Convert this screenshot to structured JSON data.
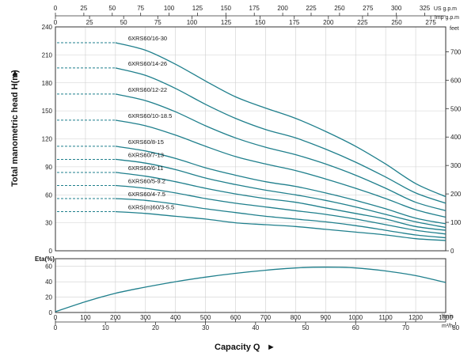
{
  "chart_data": [
    {
      "type": "line",
      "title": "",
      "ylabel": "Total manometric head H(m)",
      "ylabel_right_unit": "feet",
      "ylim": [
        0,
        240
      ],
      "xlim": [
        0,
        1300
      ],
      "x_unit": "l/min",
      "yticks": [
        0,
        30,
        60,
        90,
        120,
        150,
        180,
        210,
        240
      ],
      "yticks_feet": [
        0,
        100,
        200,
        300,
        400,
        500,
        600,
        700
      ],
      "grid": true,
      "dashed_segment_end": 200,
      "series": [
        {
          "name": "6XRS60/16-30",
          "x": [
            200,
            300,
            400,
            500,
            600,
            700,
            800,
            900,
            1000,
            1100,
            1200,
            1300
          ],
          "y": [
            223,
            215,
            200,
            182,
            165,
            153,
            142,
            128,
            112,
            93,
            72,
            58
          ]
        },
        {
          "name": "6XRS60/14-26",
          "x": [
            200,
            300,
            400,
            500,
            600,
            700,
            800,
            900,
            1000,
            1100,
            1200,
            1300
          ],
          "y": [
            196,
            188,
            174,
            157,
            142,
            130,
            121,
            109,
            95,
            79,
            62,
            51
          ]
        },
        {
          "name": "6XRS60/12-22",
          "x": [
            200,
            300,
            400,
            500,
            600,
            700,
            800,
            900,
            1000,
            1100,
            1200,
            1300
          ],
          "y": [
            168,
            161,
            149,
            134,
            121,
            111,
            103,
            93,
            81,
            67,
            52,
            43
          ]
        },
        {
          "name": "6XRS60/10-18.5",
          "x": [
            200,
            300,
            400,
            500,
            600,
            700,
            800,
            900,
            1000,
            1100,
            1200,
            1300
          ],
          "y": [
            140,
            134,
            124,
            112,
            101,
            93,
            86,
            77,
            67,
            56,
            44,
            36
          ]
        },
        {
          "name": "6XRS60/8-15",
          "x": [
            200,
            300,
            400,
            500,
            600,
            700,
            800,
            900,
            1000,
            1100,
            1200,
            1300
          ],
          "y": [
            112,
            107,
            99,
            89,
            81,
            74,
            69,
            62,
            54,
            45,
            35,
            29
          ]
        },
        {
          "name": "6XRS60/7-13",
          "x": [
            200,
            300,
            400,
            500,
            600,
            700,
            800,
            900,
            1000,
            1100,
            1200,
            1300
          ],
          "y": [
            98,
            94,
            87,
            78,
            71,
            65,
            60,
            54,
            47,
            39,
            31,
            25
          ]
        },
        {
          "name": "6XRS60/6-11",
          "x": [
            200,
            300,
            400,
            500,
            600,
            700,
            800,
            900,
            1000,
            1100,
            1200,
            1300
          ],
          "y": [
            84,
            80,
            74,
            67,
            61,
            56,
            52,
            46,
            40,
            34,
            26,
            22
          ]
        },
        {
          "name": "6XRS60/5-9.2",
          "x": [
            200,
            300,
            400,
            500,
            600,
            700,
            800,
            900,
            1000,
            1100,
            1200,
            1300
          ],
          "y": [
            70,
            67,
            62,
            56,
            51,
            47,
            43,
            39,
            34,
            28,
            22,
            18
          ]
        },
        {
          "name": "6XRS60/4-7.5",
          "x": [
            200,
            300,
            400,
            500,
            600,
            700,
            800,
            900,
            1000,
            1100,
            1200,
            1300
          ],
          "y": [
            56,
            54,
            50,
            45,
            41,
            37,
            34,
            31,
            27,
            22,
            17,
            14
          ]
        },
        {
          "name": "6XRS(m)60/3-5.5",
          "x": [
            200,
            300,
            400,
            500,
            600,
            700,
            800,
            900,
            1000,
            1100,
            1200,
            1300
          ],
          "y": [
            42,
            40,
            37,
            34,
            30,
            28,
            26,
            23,
            20,
            17,
            13,
            11
          ]
        }
      ]
    },
    {
      "type": "line",
      "title": "",
      "ylabel": "Eta(%)",
      "ylim": [
        0,
        70
      ],
      "xlim": [
        0,
        1300
      ],
      "yticks": [
        0,
        20,
        40,
        60
      ],
      "grid": true,
      "series": [
        {
          "name": "",
          "x": [
            0,
            100,
            200,
            300,
            400,
            500,
            600,
            700,
            800,
            900,
            1000,
            1100,
            1200,
            1300
          ],
          "y": [
            1,
            14,
            25,
            33,
            40,
            46,
            51,
            55,
            58,
            59,
            58,
            54,
            48,
            39
          ]
        }
      ]
    }
  ],
  "axes": {
    "top_scales": [
      {
        "unit": "US g.p.m",
        "ticks": [
          0,
          25,
          50,
          75,
          100,
          125,
          150,
          175,
          200,
          225,
          250,
          275,
          300,
          325
        ]
      },
      {
        "unit": "Imp g.p.m",
        "ticks": [
          0,
          25,
          50,
          75,
          100,
          125,
          150,
          175,
          200,
          225,
          250,
          275
        ]
      }
    ],
    "bottom_scales": [
      {
        "unit": "l/min",
        "ticks": [
          0,
          100,
          200,
          300,
          400,
          500,
          600,
          700,
          800,
          900,
          1000,
          1100,
          1200,
          1300
        ]
      },
      {
        "unit": "m³/h",
        "ticks": [
          0,
          10,
          20,
          30,
          40,
          50,
          60,
          70,
          80
        ]
      }
    ],
    "xlabel": "Capacity Q",
    "arrow_glyph": "►"
  },
  "colors": {
    "curve": "#1f7f8c",
    "grid": "#cfcfcf",
    "axis": "#333333"
  }
}
